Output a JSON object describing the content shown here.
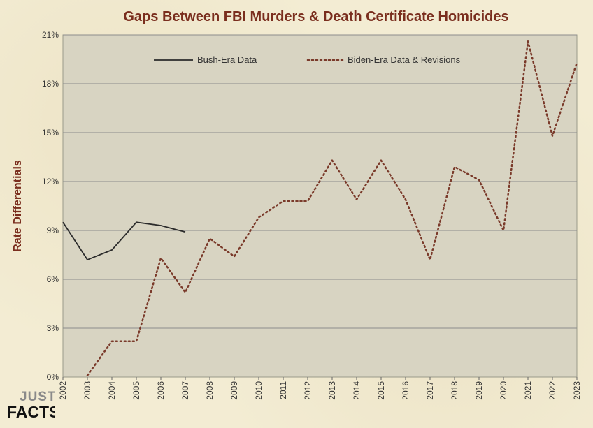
{
  "logo": {
    "line1": "JUST",
    "line2": "FACTS."
  },
  "colors": {
    "background": "#f3ecd3",
    "plot_bg": "#d8d4c2",
    "title": "#7a2e1e",
    "gridline": "#8c8c8c",
    "bush_line": "#2b2b2b",
    "biden_line": "#7a3a2a"
  },
  "chart_data": {
    "type": "line",
    "title": "Gaps Between FBI Murders & Death Certificate Homicides",
    "xlabel": "",
    "ylabel": "Rate Differentials",
    "x": [
      "2002",
      "2003",
      "2004",
      "2005",
      "2006",
      "2007",
      "2008",
      "2009",
      "2010",
      "2011",
      "2012",
      "2013",
      "2014",
      "2015",
      "2016",
      "2017",
      "2018",
      "2019",
      "2020",
      "2021",
      "2022",
      "2023"
    ],
    "ylim": [
      0,
      21
    ],
    "yticks": [
      0,
      3,
      6,
      9,
      12,
      15,
      18,
      21
    ],
    "y_tick_labels": [
      "0%",
      "3%",
      "6%",
      "9%",
      "12%",
      "15%",
      "18%",
      "21%"
    ],
    "grid": true,
    "legend_position": "top",
    "series": [
      {
        "name": "Bush-Era Data",
        "style": "solid",
        "color": "#2b2b2b",
        "values": [
          9.5,
          7.2,
          7.8,
          9.5,
          9.3,
          8.9,
          null,
          null,
          null,
          null,
          null,
          null,
          null,
          null,
          null,
          null,
          null,
          null,
          null,
          null,
          null,
          null
        ]
      },
      {
        "name": "Biden-Era Data & Revisions",
        "style": "dotted",
        "color": "#7a3a2a",
        "values": [
          null,
          0.1,
          2.2,
          2.2,
          7.3,
          5.2,
          8.5,
          7.4,
          9.8,
          10.8,
          10.8,
          13.3,
          10.9,
          13.3,
          10.9,
          7.2,
          12.9,
          12.1,
          9.0,
          20.6,
          14.8,
          19.3
        ]
      }
    ]
  }
}
